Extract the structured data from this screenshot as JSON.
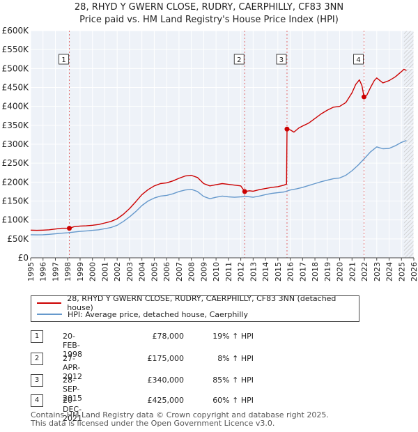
{
  "chart_data": {
    "type": "line",
    "title": "28, RHYD Y GWERN CLOSE, RUDRY, CAERPHILLY, CF83 3NN",
    "subtitle": "Price paid vs. HM Land Registry's House Price Index (HPI)",
    "xlim": [
      1995,
      2026
    ],
    "ylim": [
      0,
      600000
    ],
    "x_ticks": [
      1995,
      1996,
      1997,
      1998,
      1999,
      2000,
      2001,
      2002,
      2003,
      2004,
      2005,
      2006,
      2007,
      2008,
      2009,
      2010,
      2011,
      2012,
      2013,
      2014,
      2015,
      2016,
      2017,
      2018,
      2019,
      2020,
      2021,
      2022,
      2023,
      2024,
      2025,
      2026
    ],
    "y_ticks": [
      {
        "value": 0,
        "label": "£0"
      },
      {
        "value": 50000,
        "label": "£50K"
      },
      {
        "value": 100000,
        "label": "£100K"
      },
      {
        "value": 150000,
        "label": "£150K"
      },
      {
        "value": 200000,
        "label": "£200K"
      },
      {
        "value": 250000,
        "label": "£250K"
      },
      {
        "value": 300000,
        "label": "£300K"
      },
      {
        "value": 350000,
        "label": "£350K"
      },
      {
        "value": 400000,
        "label": "£400K"
      },
      {
        "value": 450000,
        "label": "£450K"
      },
      {
        "value": 500000,
        "label": "£500K"
      },
      {
        "value": 550000,
        "label": "£550K"
      },
      {
        "value": 600000,
        "label": "£600K"
      }
    ],
    "series": [
      {
        "name": "28, RHYD Y GWERN CLOSE, RUDRY, CAERPHILLY, CF83 3NN (detached house)",
        "color": "#cc0000",
        "points": [
          [
            1995.0,
            73000
          ],
          [
            1995.5,
            72500
          ],
          [
            1996.0,
            73000
          ],
          [
            1996.5,
            74000
          ],
          [
            1997.0,
            76000
          ],
          [
            1997.5,
            78000
          ],
          [
            1998.13,
            78000
          ],
          [
            1998.5,
            82000
          ],
          [
            1999.0,
            84000
          ],
          [
            1999.5,
            84500
          ],
          [
            2000.0,
            86000
          ],
          [
            2000.5,
            88000
          ],
          [
            2001.0,
            92000
          ],
          [
            2001.5,
            96000
          ],
          [
            2002.0,
            103000
          ],
          [
            2002.5,
            115000
          ],
          [
            2003.0,
            130000
          ],
          [
            2003.5,
            148000
          ],
          [
            2004.0,
            167000
          ],
          [
            2004.5,
            180000
          ],
          [
            2005.0,
            190000
          ],
          [
            2005.5,
            196000
          ],
          [
            2006.0,
            198000
          ],
          [
            2006.5,
            203000
          ],
          [
            2007.0,
            210000
          ],
          [
            2007.5,
            216000
          ],
          [
            2008.0,
            218000
          ],
          [
            2008.5,
            212000
          ],
          [
            2009.0,
            196000
          ],
          [
            2009.5,
            190000
          ],
          [
            2010.0,
            193000
          ],
          [
            2010.5,
            196000
          ],
          [
            2011.0,
            194000
          ],
          [
            2011.5,
            192000
          ],
          [
            2012.0,
            190000
          ],
          [
            2012.32,
            175000
          ],
          [
            2012.7,
            177000
          ],
          [
            2013.0,
            176000
          ],
          [
            2013.5,
            180000
          ],
          [
            2014.0,
            183000
          ],
          [
            2014.5,
            186000
          ],
          [
            2015.0,
            188000
          ],
          [
            2015.5,
            192000
          ],
          [
            2015.7,
            195000
          ],
          [
            2015.74,
            340000
          ],
          [
            2016.0,
            338000
          ],
          [
            2016.3,
            332000
          ],
          [
            2016.7,
            343000
          ],
          [
            2017.0,
            348000
          ],
          [
            2017.5,
            356000
          ],
          [
            2018.0,
            368000
          ],
          [
            2018.5,
            380000
          ],
          [
            2019.0,
            390000
          ],
          [
            2019.5,
            398000
          ],
          [
            2020.0,
            400000
          ],
          [
            2020.5,
            410000
          ],
          [
            2021.0,
            436000
          ],
          [
            2021.3,
            458000
          ],
          [
            2021.6,
            470000
          ],
          [
            2021.8,
            455000
          ],
          [
            2021.97,
            425000
          ],
          [
            2022.2,
            430000
          ],
          [
            2022.5,
            450000
          ],
          [
            2022.8,
            468000
          ],
          [
            2023.0,
            475000
          ],
          [
            2023.5,
            462000
          ],
          [
            2024.0,
            468000
          ],
          [
            2024.5,
            478000
          ],
          [
            2025.0,
            492000
          ],
          [
            2025.2,
            498000
          ],
          [
            2025.4,
            495000
          ]
        ]
      },
      {
        "name": "HPI: Average price, detached house, Caerphilly",
        "color": "#6699cc",
        "points": [
          [
            1995.0,
            61000
          ],
          [
            1995.5,
            60500
          ],
          [
            1996.0,
            61000
          ],
          [
            1996.5,
            62000
          ],
          [
            1997.0,
            63500
          ],
          [
            1997.5,
            65000
          ],
          [
            1998.0,
            66000
          ],
          [
            1998.5,
            68000
          ],
          [
            1999.0,
            70000
          ],
          [
            1999.5,
            71000
          ],
          [
            2000.0,
            72500
          ],
          [
            2000.5,
            74000
          ],
          [
            2001.0,
            77000
          ],
          [
            2001.5,
            80000
          ],
          [
            2002.0,
            86000
          ],
          [
            2002.5,
            96000
          ],
          [
            2003.0,
            108000
          ],
          [
            2003.5,
            122000
          ],
          [
            2004.0,
            138000
          ],
          [
            2004.5,
            150000
          ],
          [
            2005.0,
            158000
          ],
          [
            2005.5,
            163000
          ],
          [
            2006.0,
            165000
          ],
          [
            2006.5,
            169000
          ],
          [
            2007.0,
            175000
          ],
          [
            2007.5,
            179000
          ],
          [
            2008.0,
            181000
          ],
          [
            2008.5,
            175000
          ],
          [
            2009.0,
            162000
          ],
          [
            2009.5,
            156000
          ],
          [
            2010.0,
            160000
          ],
          [
            2010.5,
            163000
          ],
          [
            2011.0,
            161000
          ],
          [
            2011.5,
            160000
          ],
          [
            2012.0,
            161000
          ],
          [
            2012.5,
            162000
          ],
          [
            2013.0,
            160000
          ],
          [
            2013.5,
            163000
          ],
          [
            2014.0,
            167000
          ],
          [
            2014.5,
            170000
          ],
          [
            2015.0,
            172000
          ],
          [
            2015.5,
            174000
          ],
          [
            2016.0,
            179000
          ],
          [
            2016.5,
            182000
          ],
          [
            2017.0,
            186000
          ],
          [
            2017.5,
            191000
          ],
          [
            2018.0,
            196000
          ],
          [
            2018.5,
            201000
          ],
          [
            2019.0,
            205000
          ],
          [
            2019.5,
            209000
          ],
          [
            2020.0,
            211000
          ],
          [
            2020.5,
            218000
          ],
          [
            2021.0,
            230000
          ],
          [
            2021.5,
            245000
          ],
          [
            2022.0,
            262000
          ],
          [
            2022.5,
            280000
          ],
          [
            2023.0,
            293000
          ],
          [
            2023.5,
            288000
          ],
          [
            2024.0,
            289000
          ],
          [
            2024.5,
            296000
          ],
          [
            2025.0,
            305000
          ],
          [
            2025.4,
            310000
          ]
        ]
      }
    ],
    "sales": [
      {
        "id": "1",
        "x": 1998.13,
        "y": 78000
      },
      {
        "id": "2",
        "x": 2012.32,
        "y": 175000
      },
      {
        "id": "3",
        "x": 2015.74,
        "y": 340000
      },
      {
        "id": "4",
        "x": 2021.97,
        "y": 425000
      }
    ],
    "future_hatch_from": 2025.2,
    "grid": true,
    "legend_position": "below"
  },
  "legend": {
    "property_label": "28, RHYD Y GWERN CLOSE, RUDRY, CAERPHILLY, CF83 3NN (detached house)",
    "hpi_label": "HPI: Average price, detached house, Caerphilly"
  },
  "transactions": [
    {
      "num": "1",
      "date": "20-FEB-1998",
      "price": "£78,000",
      "hpi": "19% ↑ HPI"
    },
    {
      "num": "2",
      "date": "27-APR-2012",
      "price": "£175,000",
      "hpi": "8% ↑ HPI"
    },
    {
      "num": "3",
      "date": "28-SEP-2015",
      "price": "£340,000",
      "hpi": "85% ↑ HPI"
    },
    {
      "num": "4",
      "date": "20-DEC-2021",
      "price": "£425,000",
      "hpi": "60% ↑ HPI"
    }
  ],
  "footer": {
    "line1": "Contains HM Land Registry data © Crown copyright and database right 2025.",
    "line2": "This data is licensed under the Open Government Licence v3.0."
  }
}
